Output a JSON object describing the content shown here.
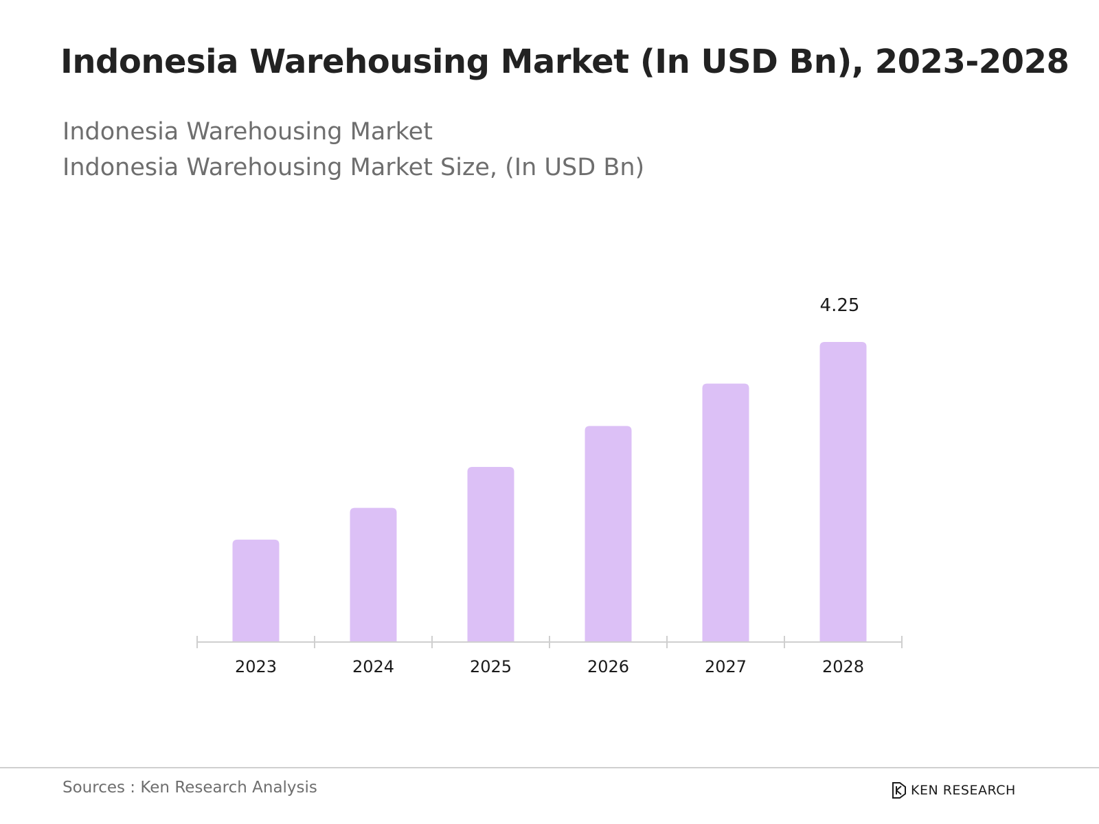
{
  "header": {
    "title": "Indonesia Warehousing Market  (In USD Bn), 2023-2028",
    "subtitle_1": "Indonesia Warehousing Market",
    "subtitle_2": "Indonesia Warehousing Market Size, (In USD Bn)"
  },
  "footer": {
    "source": "Sources : Ken Research Analysis",
    "brand": "KEN RESEARCH",
    "brand_icon": "ken-research-logo-icon"
  },
  "colors": {
    "bar": "#dcc0f6",
    "axis": "#cfcfcf",
    "title": "#222222",
    "subtitle": "#6e6e6e"
  },
  "chart_data": {
    "type": "bar",
    "title": "Indonesia Warehousing Market Size, (In USD Bn)",
    "categories": [
      "2023",
      "2024",
      "2025",
      "2026",
      "2027",
      "2028"
    ],
    "values": [
      1.45,
      1.9,
      2.48,
      3.06,
      3.66,
      4.25
    ],
    "data_labels": [
      null,
      null,
      null,
      null,
      null,
      "4.25"
    ],
    "xlabel": "",
    "ylabel": "",
    "ylim": [
      0,
      4.25
    ],
    "grid": false,
    "legend": "none"
  }
}
